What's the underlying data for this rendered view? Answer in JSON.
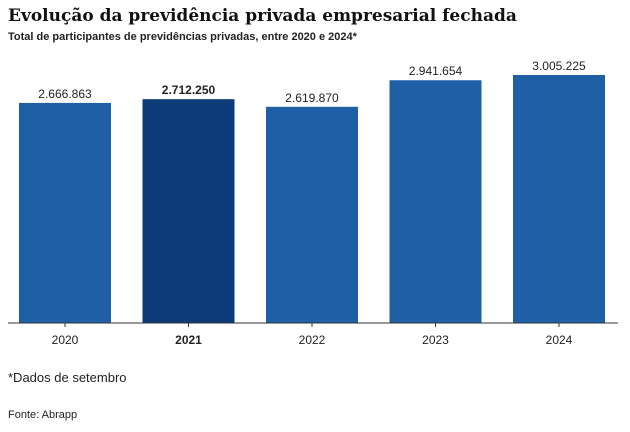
{
  "title": "Evolução da previdência privada empresarial fechada",
  "subtitle": "Total de participantes de previdências privadas, entre 2020 e 2024*",
  "note": "*Dados de setembro",
  "source": "Fonte: Abrapp",
  "colors": {
    "bar": "#1f5fa6",
    "bar_highlight": "#0d3a78",
    "axis": "#333333",
    "text": "#222222"
  },
  "chart_data": {
    "type": "bar",
    "categories": [
      "2020",
      "2021",
      "2022",
      "2023",
      "2024"
    ],
    "values": [
      2666863,
      2712250,
      2619870,
      2941654,
      3005225
    ],
    "value_labels": [
      "2.666.863",
      "2.712.250",
      "2.619.870",
      "2.941.654",
      "3.005.225"
    ],
    "highlight_index": 1,
    "ylim": [
      0,
      3005225
    ],
    "grid": false,
    "xlabel": "",
    "ylabel": ""
  }
}
